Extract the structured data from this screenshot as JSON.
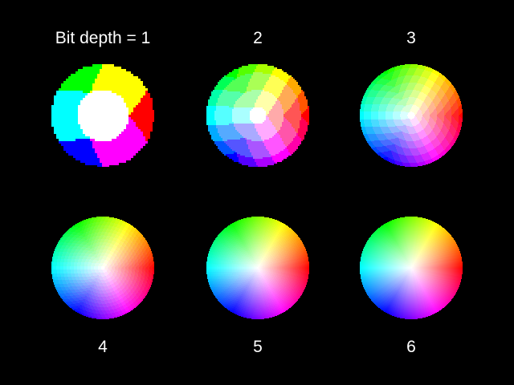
{
  "figure": {
    "background": "#000000",
    "label_color": "#ffffff",
    "panels": [
      {
        "label": "Bit depth = 1",
        "bit_depth": 1
      },
      {
        "label": "2",
        "bit_depth": 2
      },
      {
        "label": "3",
        "bit_depth": 3
      },
      {
        "label": "4",
        "bit_depth": 4
      },
      {
        "label": "5",
        "bit_depth": 5
      },
      {
        "label": "6",
        "bit_depth": 6
      }
    ]
  }
}
